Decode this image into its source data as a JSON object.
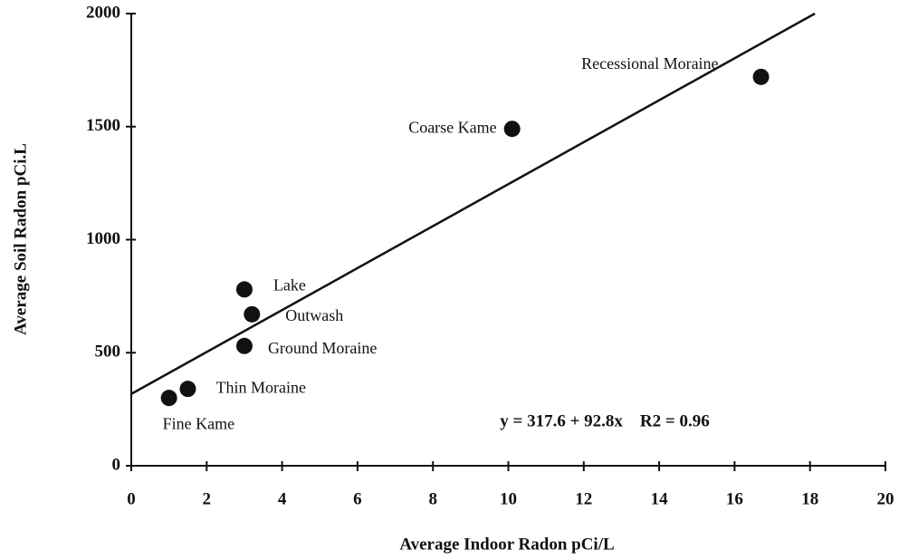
{
  "chart_data": {
    "type": "scatter",
    "xlabel": "Average Indoor Radon pCi/L",
    "ylabel": "Average Soil Radon pCi.L",
    "annotation": "y = 317.6 + 92.8x    R2 = 0.96",
    "labels": [
      "Fine Kame",
      "Thin Moraine",
      "Ground Moraine",
      "Outwash",
      "Lake",
      "Coarse Kame",
      "Recessional Moraine"
    ],
    "x": [
      1.0,
      1.5,
      3.0,
      3.2,
      3.0,
      10.1,
      16.7
    ],
    "values": [
      300,
      340,
      530,
      670,
      780,
      1490,
      1720
    ],
    "color": "#111111",
    "trendline": {
      "intercept": 317.6,
      "slope": 92.8
    },
    "xlim": [
      0,
      20
    ],
    "xticks": [
      0,
      2,
      4,
      6,
      8,
      10,
      12,
      14,
      16,
      18,
      20
    ],
    "ylim": [
      0,
      2000
    ],
    "yticks": [
      0,
      500,
      1000,
      1500,
      2000
    ]
  }
}
